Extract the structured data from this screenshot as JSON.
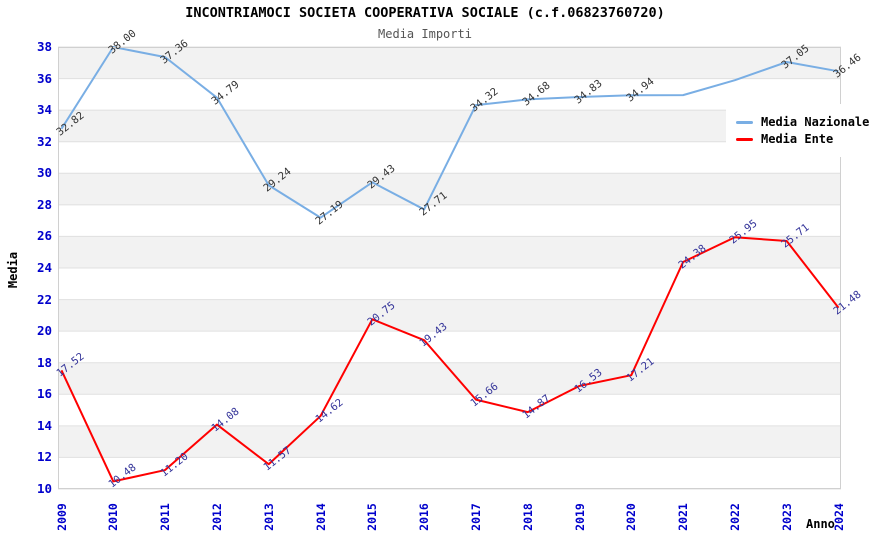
{
  "chart_data": {
    "type": "line",
    "title": "INCONTRIAMOCI SOCIETA COOPERATIVA SOCIALE (c.f.06823760720)",
    "subtitle": "Media Importi",
    "xlabel": "Anno",
    "ylabel": "Media",
    "ylim": [
      10,
      38
    ],
    "y_ticks": [
      38,
      36,
      34,
      32,
      30,
      28,
      26,
      24,
      22,
      20,
      18,
      16,
      14,
      12,
      10
    ],
    "grid": "horizontal gridlines every 2 units with alternating gray bands",
    "legend_position": "top-right-overlay",
    "categories": [
      "2009",
      "2010",
      "2011",
      "2012",
      "2013",
      "2014",
      "2015",
      "2016",
      "2017",
      "2018",
      "2019",
      "2020",
      "2021",
      "2022",
      "2023",
      "2024"
    ],
    "series": [
      {
        "name": "Media Nazionale",
        "color": "#79AEE4",
        "label_color": "#333333",
        "values": [
          32.82,
          38.0,
          37.36,
          34.79,
          29.24,
          27.19,
          29.43,
          27.71,
          34.32,
          34.68,
          34.83,
          34.94,
          34.95,
          35.9,
          37.05,
          36.46
        ],
        "labels": [
          "32.82",
          "38.00",
          "37.36",
          "34.79",
          "29.24",
          "27.19",
          "29.43",
          "27.71",
          "34.32",
          "34.68",
          "34.83",
          "34.94",
          null,
          null,
          "37.05",
          "36.46"
        ]
      },
      {
        "name": "Media Ente",
        "color": "#FF0000",
        "label_color": "#333399",
        "values": [
          17.52,
          10.48,
          11.2,
          14.08,
          11.57,
          14.62,
          20.75,
          19.43,
          15.66,
          14.87,
          16.53,
          17.21,
          24.38,
          25.95,
          25.71,
          21.48
        ],
        "labels": [
          "17.52",
          "10.48",
          "11.20",
          "14.08",
          "11.57",
          "14.62",
          "20.75",
          "19.43",
          "15.66",
          "14.87",
          "16.53",
          "17.21",
          "24.38",
          "25.95",
          "25.71",
          "21.48"
        ]
      }
    ]
  },
  "colors": {
    "band": "#F2F2F2",
    "gridline": "#E0E0E0",
    "plot_border": "#D0D0D0",
    "tick_label": "#0000CC",
    "title": "#000000",
    "subtitle": "#555555",
    "legend_bg": "#FFFFFF"
  }
}
